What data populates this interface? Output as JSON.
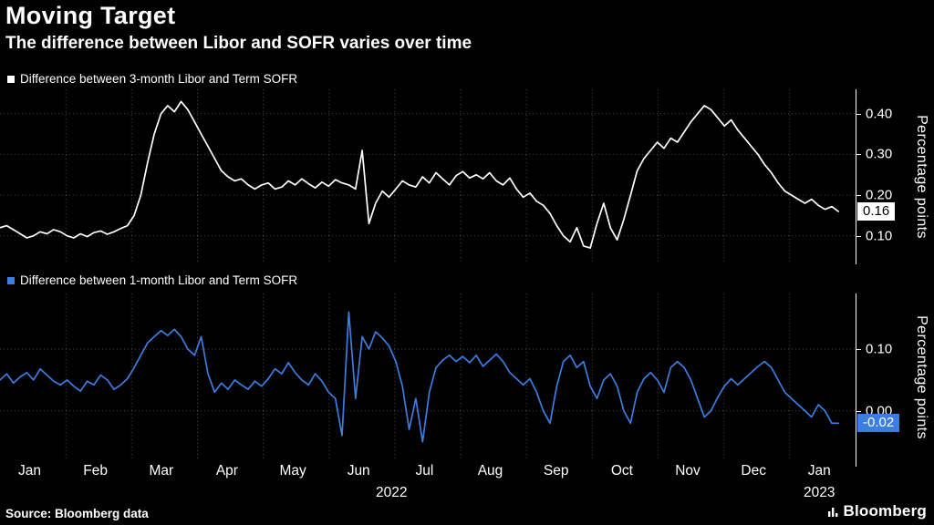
{
  "header": {
    "title": "Moving Target",
    "subtitle": "The difference between Libor and SOFR varies over time"
  },
  "xaxis": {
    "months": [
      "Jan",
      "Feb",
      "Mar",
      "Apr",
      "May",
      "Jun",
      "Jul",
      "Aug",
      "Sep",
      "Oct",
      "Nov",
      "Dec",
      "Jan"
    ],
    "years": [
      {
        "label": "2022",
        "month_pos": 5.95
      },
      {
        "label": "2023",
        "month_pos": 12.45
      }
    ],
    "months_span": 13
  },
  "footer": {
    "source": "Source: Bloomberg data",
    "brand": "Bloomberg"
  },
  "chart_data": [
    {
      "type": "line",
      "title": "Difference between 3-month Libor and Term SOFR",
      "color": "#ffffff",
      "badge_bg": "#ffffff",
      "badge_fg": "#000000",
      "last_label": "0.16",
      "ylabel": "Percentage points",
      "ylim": [
        0.03,
        0.46
      ],
      "yticks": [
        0.4,
        0.3,
        0.2,
        0.1
      ],
      "ytick_labels": [
        "0.40",
        "0.30",
        "0.20",
        "0.10"
      ],
      "x_end_frac": 0.98,
      "values": [
        0.12,
        0.125,
        0.115,
        0.105,
        0.095,
        0.1,
        0.11,
        0.105,
        0.115,
        0.11,
        0.1,
        0.095,
        0.105,
        0.098,
        0.108,
        0.112,
        0.104,
        0.11,
        0.118,
        0.125,
        0.15,
        0.2,
        0.28,
        0.35,
        0.4,
        0.42,
        0.405,
        0.43,
        0.41,
        0.38,
        0.35,
        0.32,
        0.29,
        0.26,
        0.245,
        0.235,
        0.24,
        0.225,
        0.215,
        0.225,
        0.23,
        0.215,
        0.22,
        0.235,
        0.225,
        0.24,
        0.228,
        0.218,
        0.232,
        0.222,
        0.238,
        0.23,
        0.225,
        0.215,
        0.31,
        0.13,
        0.18,
        0.21,
        0.195,
        0.215,
        0.235,
        0.225,
        0.22,
        0.245,
        0.23,
        0.255,
        0.24,
        0.225,
        0.248,
        0.258,
        0.242,
        0.25,
        0.24,
        0.255,
        0.235,
        0.225,
        0.242,
        0.215,
        0.195,
        0.205,
        0.185,
        0.175,
        0.155,
        0.125,
        0.1,
        0.085,
        0.12,
        0.075,
        0.07,
        0.13,
        0.18,
        0.12,
        0.09,
        0.14,
        0.2,
        0.26,
        0.29,
        0.31,
        0.33,
        0.315,
        0.34,
        0.33,
        0.355,
        0.38,
        0.4,
        0.42,
        0.41,
        0.39,
        0.37,
        0.385,
        0.36,
        0.34,
        0.32,
        0.3,
        0.275,
        0.255,
        0.23,
        0.21,
        0.2,
        0.19,
        0.18,
        0.19,
        0.175,
        0.165,
        0.172,
        0.16
      ]
    },
    {
      "type": "line",
      "title": "Difference between 1-month Libor and Term SOFR",
      "color": "#3b7de0",
      "badge_bg": "#3b7de0",
      "badge_fg": "#ffffff",
      "last_label": "-0.02",
      "ylabel": "Percentage points",
      "ylim": [
        -0.08,
        0.19
      ],
      "yticks": [
        0.1,
        0.0
      ],
      "ytick_labels": [
        "0.10",
        "0.00"
      ],
      "x_end_frac": 0.98,
      "values": [
        0.05,
        0.06,
        0.045,
        0.055,
        0.062,
        0.05,
        0.068,
        0.058,
        0.048,
        0.042,
        0.05,
        0.04,
        0.032,
        0.048,
        0.042,
        0.058,
        0.05,
        0.035,
        0.042,
        0.052,
        0.07,
        0.09,
        0.11,
        0.12,
        0.13,
        0.122,
        0.132,
        0.12,
        0.1,
        0.09,
        0.12,
        0.06,
        0.03,
        0.045,
        0.035,
        0.05,
        0.042,
        0.035,
        0.048,
        0.04,
        0.052,
        0.068,
        0.06,
        0.078,
        0.062,
        0.05,
        0.042,
        0.06,
        0.048,
        0.03,
        0.02,
        -0.04,
        0.16,
        0.02,
        0.12,
        0.1,
        0.128,
        0.118,
        0.105,
        0.08,
        0.04,
        -0.03,
        0.02,
        -0.05,
        0.03,
        0.07,
        0.082,
        0.09,
        0.08,
        0.088,
        0.078,
        0.09,
        0.072,
        0.082,
        0.092,
        0.08,
        0.062,
        0.052,
        0.042,
        0.052,
        0.03,
        0.0,
        -0.02,
        0.04,
        0.08,
        0.09,
        0.07,
        0.08,
        0.04,
        0.02,
        0.05,
        0.06,
        0.04,
        0.0,
        -0.02,
        0.03,
        0.052,
        0.062,
        0.05,
        0.03,
        0.07,
        0.08,
        0.07,
        0.05,
        0.02,
        -0.01,
        0.0,
        0.022,
        0.04,
        0.052,
        0.042,
        0.052,
        0.062,
        0.072,
        0.08,
        0.07,
        0.05,
        0.03,
        0.02,
        0.01,
        0.0,
        -0.01,
        0.01,
        0.0,
        -0.02,
        -0.02
      ]
    }
  ]
}
